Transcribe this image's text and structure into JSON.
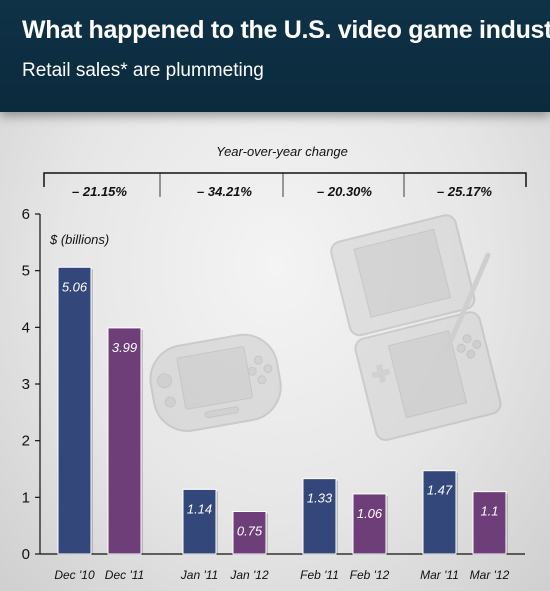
{
  "header": {
    "title": "What happened to the U.S. video game industry?",
    "subtitle": "Retail sales* are plummeting"
  },
  "colors": {
    "series_prior": "#33477a",
    "series_current": "#6e3e78",
    "header_bg": "#0b2a3c"
  },
  "chart_data": {
    "type": "bar",
    "ylabel": "$ (billions)",
    "ylim": [
      0,
      6
    ],
    "yticks": [
      0,
      1,
      2,
      3,
      4,
      5,
      6
    ],
    "yoy_title": "Year-over-year change",
    "groups": [
      {
        "change": "– 21.15%",
        "bars": [
          {
            "label": "Dec '10",
            "value": 5.06,
            "value_label": "5.06"
          },
          {
            "label": "Dec '11",
            "value": 3.99,
            "value_label": "3.99"
          }
        ]
      },
      {
        "change": "– 34.21%",
        "bars": [
          {
            "label": "Jan '11",
            "value": 1.14,
            "value_label": "1.14"
          },
          {
            "label": "Jan '12",
            "value": 0.75,
            "value_label": "0.75"
          }
        ]
      },
      {
        "change": "– 20.30%",
        "bars": [
          {
            "label": "Feb '11",
            "value": 1.33,
            "value_label": "1.33"
          },
          {
            "label": "Feb '12",
            "value": 1.06,
            "value_label": "1.06"
          }
        ]
      },
      {
        "change": "– 25.17%",
        "bars": [
          {
            "label": "Mar '11",
            "value": 1.47,
            "value_label": "1.47"
          },
          {
            "label": "Mar '12",
            "value": 1.1,
            "value_label": "1.1"
          }
        ]
      }
    ]
  }
}
